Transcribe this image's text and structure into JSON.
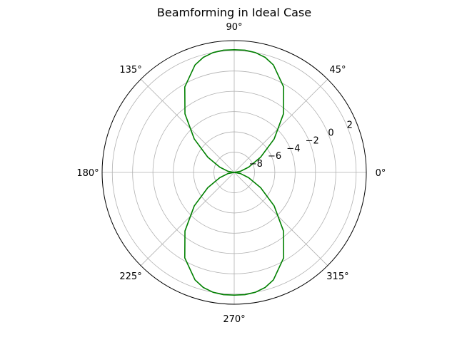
{
  "chart_data": {
    "type": "line",
    "projection": "polar",
    "title": "Beamforming in Ideal Case",
    "angle_ticks": [
      {
        "deg": 0,
        "label": "0°"
      },
      {
        "deg": 45,
        "label": "45°"
      },
      {
        "deg": 90,
        "label": "90°"
      },
      {
        "deg": 135,
        "label": "135°"
      },
      {
        "deg": 180,
        "label": "180°"
      },
      {
        "deg": 225,
        "label": "225°"
      },
      {
        "deg": 270,
        "label": "270°"
      },
      {
        "deg": 315,
        "label": "315°"
      }
    ],
    "radial_ticks": [
      -8,
      -6,
      -4,
      -2,
      0,
      2
    ],
    "radial_tick_labels": [
      "−8",
      "−6",
      "−4",
      "−2",
      "0",
      "2"
    ],
    "rlim": [
      -10,
      3.0
    ],
    "grid": true,
    "series": [
      {
        "color": "#008000",
        "theta_deg": [
          0,
          10,
          20,
          30,
          40,
          50,
          60,
          70,
          75,
          80,
          85,
          90,
          95,
          100,
          105,
          110,
          120,
          130,
          140,
          150,
          160,
          170,
          180,
          190,
          200,
          210,
          220,
          230,
          240,
          250,
          255,
          260,
          265,
          270,
          275,
          280,
          285,
          290,
          300,
          310,
          320,
          330,
          340,
          350,
          360
        ],
        "r": [
          -10.0,
          -9.38,
          -8.49,
          -7.0,
          -4.87,
          -2.46,
          -0.27,
          1.28,
          1.75,
          2.0,
          2.1,
          2.1,
          2.1,
          2.0,
          1.75,
          1.28,
          -0.27,
          -2.46,
          -4.87,
          -7.0,
          -8.49,
          -9.38,
          -10.0,
          -9.38,
          -8.49,
          -7.0,
          -4.87,
          -2.46,
          -0.27,
          1.28,
          1.75,
          2.0,
          2.1,
          2.1,
          2.1,
          2.0,
          1.75,
          1.28,
          -0.27,
          -2.46,
          -4.87,
          -7.0,
          -8.49,
          -9.38,
          -10.0
        ]
      }
    ]
  }
}
